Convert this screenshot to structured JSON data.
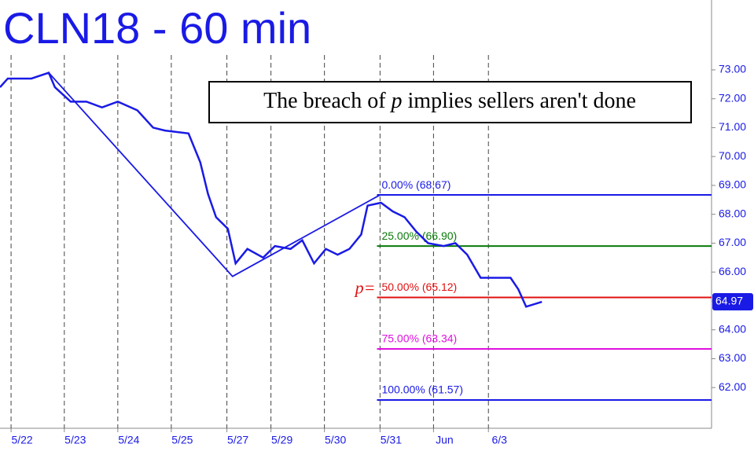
{
  "chart_data": {
    "type": "line",
    "title": "CLN18 - 60 min",
    "note": {
      "before": "The breach of ",
      "italic": "p",
      "after": " implies sellers aren't done"
    },
    "p_marker": "p=",
    "xlim": [
      0,
      302
    ],
    "ylim": [
      60.59,
      75.42
    ],
    "yticks": [
      {
        "value": 62,
        "label": "62.00"
      },
      {
        "value": 63,
        "label": "63.00"
      },
      {
        "value": 64,
        "label": "64.00"
      },
      {
        "value": 65,
        "label": "65.00"
      },
      {
        "value": 66,
        "label": "66.00"
      },
      {
        "value": 67,
        "label": "67.00"
      },
      {
        "value": 68,
        "label": "68.00"
      },
      {
        "value": 69,
        "label": "69.00"
      },
      {
        "value": 70,
        "label": "70.00"
      },
      {
        "value": 71,
        "label": "71.00"
      },
      {
        "value": 72,
        "label": "72.00"
      },
      {
        "value": 73,
        "label": "73.00"
      }
    ],
    "xticks": [
      {
        "value": 4.7,
        "label": "5/22"
      },
      {
        "value": 27.3,
        "label": "5/23"
      },
      {
        "value": 50,
        "label": "5/24"
      },
      {
        "value": 72.7,
        "label": "5/25"
      },
      {
        "value": 96.3,
        "label": "5/27"
      },
      {
        "value": 115,
        "label": "5/29"
      },
      {
        "value": 137.7,
        "label": "5/30"
      },
      {
        "value": 161.3,
        "label": "5/31"
      },
      {
        "value": 184,
        "label": "Jun"
      },
      {
        "value": 207.3,
        "label": "6/3"
      }
    ],
    "series": [
      {
        "color": "#1a1ae6",
        "x": [
          0,
          3.3,
          13.3,
          20.7,
          23.3,
          30,
          36.7,
          43.3,
          50,
          58.3,
          65,
          70,
          80,
          85,
          88.3,
          91.7,
          96.7,
          100,
          105,
          111.7,
          116.7,
          123.3,
          128.3,
          133.3,
          138.3,
          143.3,
          148.3,
          153.3,
          156,
          161.7,
          166.7,
          171.7,
          176.7,
          181.7,
          188.3,
          193.3,
          198.3,
          204,
          210,
          216.7,
          220,
          223.3,
          230
        ],
        "values": [
          72.4,
          72.7,
          72.7,
          72.9,
          72.4,
          71.9,
          71.9,
          71.7,
          71.9,
          71.6,
          71.0,
          70.9,
          70.8,
          69.8,
          68.7,
          67.9,
          67.5,
          66.3,
          66.8,
          66.5,
          66.9,
          66.8,
          67.1,
          66.3,
          66.8,
          66.6,
          66.8,
          67.3,
          68.3,
          68.4,
          68.1,
          67.9,
          67.4,
          67.0,
          66.9,
          67.0,
          66.6,
          65.8,
          65.8,
          65.8,
          65.4,
          64.8,
          64.97
        ]
      }
    ],
    "trendline": {
      "color": "#1a1ae6",
      "x": [
        20.7,
        98.7,
        161.3
      ],
      "values": [
        72.9,
        65.85,
        68.67
      ]
    },
    "fib_x": 160,
    "fib_levels": [
      {
        "label": "0.00% (68.67)",
        "value": 68.67,
        "color": "#1a1ae6"
      },
      {
        "label": "25.00% (66.90)",
        "value": 66.9,
        "color": "#0a7a0a"
      },
      {
        "label": "50.00% (65.12)",
        "value": 65.12,
        "color": "#e01010"
      },
      {
        "label": "75.00% (63.34)",
        "value": 63.34,
        "color": "#e010e0"
      },
      {
        "label": "100.00% (61.57)",
        "value": 61.57,
        "color": "#1a1ae6"
      }
    ],
    "last_value": 64.97
  }
}
